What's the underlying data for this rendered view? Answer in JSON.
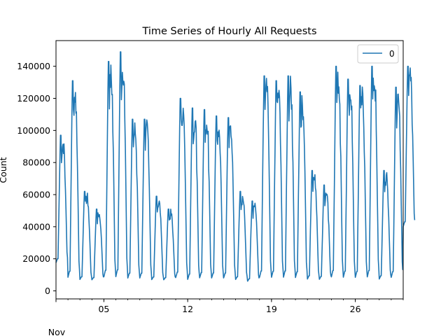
{
  "chart_data": {
    "type": "line",
    "title": "Time Series of Hourly All Requests",
    "ylabel": "Count",
    "xlabel": "",
    "x_start": "2023-11-01",
    "x_end": "2023-11-30",
    "xlim": [
      1,
      30
    ],
    "ylim": [
      -5000,
      156000
    ],
    "xticks": [
      {
        "day": 5,
        "label": "05"
      },
      {
        "day": 12,
        "label": "12"
      },
      {
        "day": 19,
        "label": "19"
      },
      {
        "day": 26,
        "label": "26"
      }
    ],
    "x_secondary_label": "Nov",
    "yticks": [
      0,
      20000,
      40000,
      60000,
      80000,
      100000,
      120000,
      140000
    ],
    "ytick_labels": [
      "0",
      "20000",
      "40000",
      "60000",
      "80000",
      "100000",
      "120000",
      "140000"
    ],
    "grid": false,
    "legend": {
      "position": "top-right",
      "entries": [
        "0"
      ]
    },
    "series": [
      {
        "name": "0",
        "color": "#1f77b4",
        "daily_peak": [
          97000,
          131000,
          62000,
          51000,
          143000,
          149000,
          107000,
          107000,
          59000,
          51000,
          120000,
          114000,
          113000,
          109000,
          108000,
          62000,
          56000,
          134000,
          131000,
          134000,
          124000,
          75000,
          66000,
          140000,
          132000,
          128000,
          140000,
          75000,
          127000,
          140000
        ],
        "daily_trough": [
          16000,
          6000,
          6000,
          6000,
          6000,
          6000,
          6000,
          6000,
          6000,
          6000,
          6000,
          5000,
          6000,
          6000,
          6000,
          6000,
          5000,
          6000,
          6000,
          6000,
          6000,
          6000,
          6000,
          6000,
          6000,
          6000,
          6000,
          6000,
          6000,
          38000
        ]
      }
    ]
  }
}
